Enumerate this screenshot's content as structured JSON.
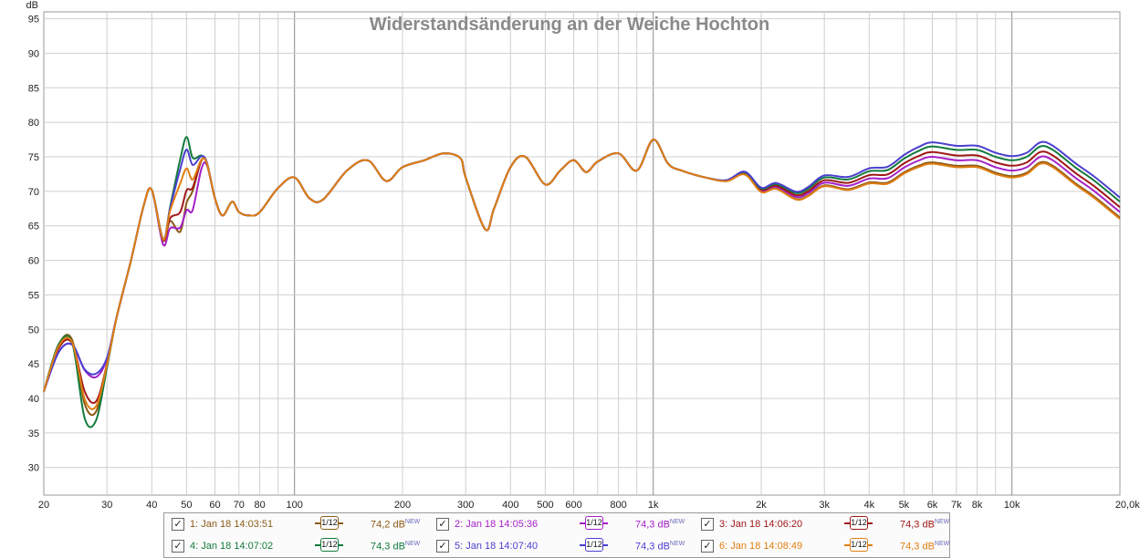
{
  "chart_data": {
    "type": "line",
    "title": "Widerstandsänderung an der Weiche Hochton",
    "ylabel": "dB",
    "xlabel": "",
    "x_scale": "log",
    "xlim": [
      20,
      20000
    ],
    "ylim": [
      26,
      96
    ],
    "grid": true,
    "y_ticks": [
      "30",
      "35",
      "40",
      "45",
      "50",
      "55",
      "60",
      "65",
      "70",
      "75",
      "80",
      "85",
      "90",
      "95"
    ],
    "x_ticks": [
      {
        "v": 20,
        "label": "20"
      },
      {
        "v": 30,
        "label": "30"
      },
      {
        "v": 40,
        "label": "40"
      },
      {
        "v": 50,
        "label": "50"
      },
      {
        "v": 60,
        "label": "60"
      },
      {
        "v": 70,
        "label": "70"
      },
      {
        "v": 80,
        "label": "80"
      },
      {
        "v": 100,
        "label": "100"
      },
      {
        "v": 200,
        "label": "200"
      },
      {
        "v": 300,
        "label": "300"
      },
      {
        "v": 400,
        "label": "400"
      },
      {
        "v": 500,
        "label": "500"
      },
      {
        "v": 600,
        "label": "600"
      },
      {
        "v": 800,
        "label": "800"
      },
      {
        "v": 1000,
        "label": "1k"
      },
      {
        "v": 2000,
        "label": "2k"
      },
      {
        "v": 3000,
        "label": "3k"
      },
      {
        "v": 4000,
        "label": "4k"
      },
      {
        "v": 5000,
        "label": "5k"
      },
      {
        "v": 6000,
        "label": "6k"
      },
      {
        "v": 7000,
        "label": "7k"
      },
      {
        "v": 8000,
        "label": "8k"
      },
      {
        "v": 10000,
        "label": "10k"
      },
      {
        "v": 20000,
        "label": "20,0kHz"
      }
    ],
    "base_curve": {
      "x": [
        20,
        22,
        24,
        26,
        28,
        30,
        32,
        35,
        38,
        40,
        43,
        45,
        48,
        50,
        52,
        55,
        57,
        60,
        63,
        67,
        70,
        75,
        80,
        90,
        100,
        110,
        120,
        140,
        160,
        180,
        200,
        230,
        260,
        290,
        300,
        340,
        360,
        400,
        440,
        500,
        550,
        600,
        650,
        700,
        800,
        900,
        1000,
        1100,
        1200,
        1400,
        1600,
        1800,
        2000,
        2200,
        2500,
        2700,
        3000,
        3500,
        4000,
        4500,
        5000,
        5500,
        6000,
        7000,
        8000,
        9000,
        10000,
        11000,
        12000,
        13000,
        15000,
        17000,
        20000
      ],
      "y": [
        41,
        47,
        48,
        43,
        40,
        45,
        52,
        60,
        68,
        70.2,
        63,
        67,
        70,
        72,
        71,
        74.5,
        74,
        69,
        66.5,
        68.5,
        67,
        66.5,
        67,
        70.5,
        72,
        69,
        68.8,
        73,
        74.5,
        71.5,
        73.5,
        74.5,
        75.5,
        74.8,
        72,
        64.5,
        67.5,
        73.5,
        75,
        71,
        73,
        74.5,
        72.8,
        74.3,
        75.5,
        73,
        77.5,
        74,
        73,
        72,
        71.5,
        72.5,
        70,
        70.5,
        69,
        69.5,
        71,
        70.5,
        71.5,
        71.5,
        73,
        74,
        74.5,
        74,
        74,
        73,
        72.5,
        73,
        74.5,
        74,
        71.5,
        69.5,
        66.5
      ]
    },
    "series": [
      {
        "name": "1: Jan 18 14:03:51",
        "level": "74,2 dB",
        "color": "#8a5a16",
        "hf": -0.3,
        "lf": {
          "23": 1.5,
          "26": -2.5,
          "27": -2,
          "45": 0.5,
          "48": -6,
          "52": 0
        }
      },
      {
        "name": "2: Jan 18 14:05:36",
        "level": "74,3 dB",
        "color": "#a420c8",
        "hf": 0.5,
        "lf": {
          "23": -0.5,
          "26": 0.5,
          "28": 3,
          "45": -1,
          "48": -4.5,
          "52": -3
        }
      },
      {
        "name": "3: Jan 18 14:06:20",
        "level": "74,3 dB",
        "color": "#a01818",
        "hf": 1.2,
        "lf": {
          "23": 0.5,
          "26": -2,
          "45": 0,
          "48": -3,
          "52": 0
        }
      },
      {
        "name": "4: Jan 18 14:07:02",
        "level": "74,3 dB",
        "color": "#127a3c",
        "hf": 2.0,
        "lf": {
          "23": 1.5,
          "26": -5.5,
          "28": -2,
          "48": 2,
          "50": 4,
          "52": 1
        }
      },
      {
        "name": "5: Jan 18 14:07:40",
        "level": "74,3 dB",
        "color": "#4b3fd0",
        "hf": 2.6,
        "lf": {
          "23": -0.5,
          "26": 0.5,
          "28": 3.5,
          "48": 1.5,
          "50": 2.5,
          "52": 1
        }
      },
      {
        "name": "6: Jan 18 14:08:49",
        "level": "74,3 dB",
        "color": "#e07e12",
        "hf": -0.5,
        "lf": {
          "23": 1,
          "26": -3,
          "28": -0.5,
          "48": 0.5,
          "50": 1,
          "52": 0
        }
      }
    ]
  },
  "legend": {
    "smoothing_label": "1/12",
    "new_tag": "NEW",
    "checkbox_mark": "✓",
    "items": [
      {
        "name": "1: Jan 18 14:03:51",
        "level": "74,2 dB",
        "color": "#8a5a16"
      },
      {
        "name": "2: Jan 18 14:05:36",
        "level": "74,3 dB",
        "color": "#a420c8"
      },
      {
        "name": "3: Jan 18 14:06:20",
        "level": "74,3 dB",
        "color": "#a01818"
      },
      {
        "name": "4: Jan 18 14:07:02",
        "level": "74,3 dB",
        "color": "#127a3c"
      },
      {
        "name": "5: Jan 18 14:07:40",
        "level": "74,3 dB",
        "color": "#4b3fd0"
      },
      {
        "name": "6: Jan 18 14:08:49",
        "level": "74,3 dB",
        "color": "#e07e12"
      }
    ]
  }
}
